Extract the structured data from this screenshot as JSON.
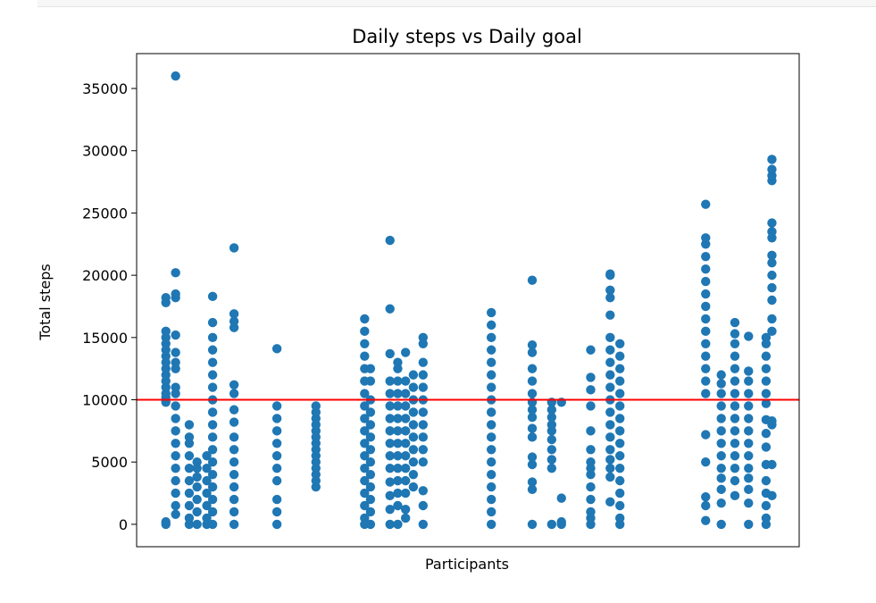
{
  "chart_data": {
    "type": "scatter",
    "title": "Daily steps vs Daily goal",
    "xlabel": "Participants",
    "ylabel": "Total steps",
    "x_ticks_shown": false,
    "xlim": [
      0,
      34
    ],
    "ylim": [
      -1800,
      37800
    ],
    "y_ticks": [
      0,
      5000,
      10000,
      15000,
      20000,
      25000,
      30000,
      35000
    ],
    "grid": false,
    "legend": "none",
    "marker_color": "#1f77b4",
    "goal_line": {
      "value": 10000,
      "color": "#ff0000"
    },
    "series": [
      {
        "points": [
          {
            "x": 1.5,
            "ys": [
              0,
              200,
              9800,
              10200,
              10500,
              11000,
              11500,
              12000,
              12500,
              13000,
              13500,
              14000,
              14500,
              15000,
              15500,
              17800,
              18200
            ]
          },
          {
            "x": 2.0,
            "ys": [
              800,
              1500,
              2500,
              3500,
              4500,
              5500,
              6500,
              7500,
              8500,
              9500,
              10500,
              11000,
              12500,
              13000,
              13800,
              15200,
              18200,
              18500,
              20200,
              36000
            ]
          },
          {
            "x": 2.7,
            "ys": [
              0,
              500,
              1500,
              2500,
              3500,
              4500,
              5500,
              6500,
              7000,
              8000
            ]
          },
          {
            "x": 3.1,
            "ys": [
              0,
              1000,
              2000,
              3000,
              3800,
              4500,
              5000
            ]
          },
          {
            "x": 3.6,
            "ys": [
              0,
              500,
              1500,
              2500,
              3500,
              4500,
              5500
            ]
          },
          {
            "x": 3.9,
            "ys": [
              0,
              1000,
              2000,
              3000,
              4000,
              5000,
              6000,
              7000,
              8000,
              9000,
              10000,
              11000,
              12000,
              13000,
              14000,
              15000,
              16200,
              18300
            ]
          },
          {
            "x": 5.0,
            "ys": [
              0,
              1000,
              2000,
              3000,
              4000,
              5000,
              6000,
              7000,
              8200,
              9200,
              10500,
              11200,
              15800,
              16300,
              16900,
              22200
            ]
          },
          {
            "x": 7.2,
            "ys": [
              0,
              1000,
              2000,
              3500,
              4500,
              5500,
              6500,
              7500,
              8500,
              9500,
              14100
            ]
          },
          {
            "x": 9.2,
            "ys": [
              3000,
              3500,
              4000,
              4500,
              5000,
              5500,
              6000,
              6500,
              7000,
              7500,
              8000,
              8500,
              9000,
              9500
            ]
          },
          {
            "x": 11.7,
            "ys": [
              0,
              500,
              1500,
              2500,
              3500,
              4500,
              5500,
              6500,
              7500,
              8500,
              9500,
              10500,
              11500,
              12500,
              13500,
              14500,
              15500,
              16500
            ]
          },
          {
            "x": 12.0,
            "ys": [
              0,
              1000,
              2000,
              3000,
              4000,
              5000,
              6000,
              7000,
              8000,
              9000,
              10000,
              11500,
              12500
            ]
          },
          {
            "x": 13.0,
            "ys": [
              0,
              1200,
              2300,
              3400,
              4500,
              5500,
              6500,
              7500,
              8500,
              9500,
              10500,
              11500,
              13700,
              17300,
              22800
            ]
          },
          {
            "x": 13.4,
            "ys": [
              0,
              1500,
              2500,
              3500,
              4500,
              5500,
              6500,
              7500,
              8500,
              9500,
              10500,
              11500,
              12500,
              13000
            ]
          },
          {
            "x": 13.8,
            "ys": [
              500,
              1200,
              2500,
              3500,
              4500,
              5500,
              6500,
              7500,
              8500,
              9500,
              10500,
              11500,
              13800
            ]
          },
          {
            "x": 14.2,
            "ys": [
              3000,
              4000,
              5000,
              6000,
              7000,
              8000,
              9000,
              10000,
              11000,
              12000
            ]
          },
          {
            "x": 14.7,
            "ys": [
              0,
              1500,
              2700,
              5000,
              6000,
              7000,
              8000,
              9000,
              10000,
              11000,
              12000,
              13000,
              14500,
              15000
            ]
          },
          {
            "x": 18.2,
            "ys": [
              0,
              1000,
              2000,
              3000,
              4000,
              5000,
              6000,
              7000,
              8000,
              9000,
              10000,
              11000,
              12000,
              13000,
              14000,
              15000,
              16000,
              17000
            ]
          },
          {
            "x": 20.3,
            "ys": [
              0,
              2800,
              3400,
              4800,
              5400,
              7000,
              7700,
              8600,
              9200,
              9800,
              10500,
              11500,
              12500,
              13800,
              14400,
              19600
            ]
          },
          {
            "x": 21.3,
            "ys": [
              0,
              4500,
              5200,
              6000,
              6800,
              7500,
              8000,
              8600,
              9200,
              9800
            ]
          },
          {
            "x": 21.8,
            "ys": [
              0,
              200,
              2100,
              9800
            ]
          },
          {
            "x": 23.3,
            "ys": [
              0,
              500,
              1000,
              2000,
              3000,
              4000,
              4500,
              5000,
              6000,
              7500,
              9500,
              10800,
              11800,
              14000
            ]
          },
          {
            "x": 24.3,
            "ys": [
              1800,
              3800,
              4500,
              5200,
              6000,
              7000,
              8000,
              9000,
              10000,
              11000,
              12000,
              13000,
              14000,
              15000,
              16800,
              18200,
              18800,
              20000,
              20100
            ]
          },
          {
            "x": 24.8,
            "ys": [
              0,
              500,
              1500,
              2500,
              3500,
              4500,
              5500,
              6500,
              7500,
              8500,
              9500,
              10500,
              11500,
              12500,
              13500,
              14500
            ]
          },
          {
            "x": 29.2,
            "ys": [
              300,
              1500,
              2200,
              5000,
              7200,
              10500,
              11500,
              12500,
              13500,
              14500,
              15500,
              16500,
              17500,
              18500,
              19500,
              20500,
              21500,
              22500,
              23000,
              25700
            ]
          },
          {
            "x": 30.0,
            "ys": [
              0,
              1700,
              2800,
              3700,
              4500,
              5500,
              6500,
              7500,
              8500,
              9500,
              10500,
              11300,
              12000
            ]
          },
          {
            "x": 30.7,
            "ys": [
              2300,
              3500,
              4500,
              5500,
              6500,
              7500,
              8500,
              9500,
              10500,
              11500,
              12500,
              13500,
              14500,
              15300,
              16200
            ]
          },
          {
            "x": 31.4,
            "ys": [
              0,
              1700,
              2800,
              3700,
              4500,
              5500,
              6500,
              7500,
              8500,
              9500,
              10500,
              11500,
              12300,
              15100
            ]
          },
          {
            "x": 32.3,
            "ys": [
              0,
              500,
              1500,
              2500,
              3500,
              4800,
              6200,
              7300,
              8400,
              9700,
              10500,
              11500,
              12500,
              13500,
              14500,
              15000
            ]
          },
          {
            "x": 32.6,
            "ys": [
              2300,
              4800,
              8000,
              8300,
              15500,
              16500,
              18000,
              19000,
              20000,
              21000,
              21600,
              23000,
              23500,
              24200,
              27600,
              28000,
              28500,
              29300
            ]
          }
        ]
      }
    ]
  }
}
